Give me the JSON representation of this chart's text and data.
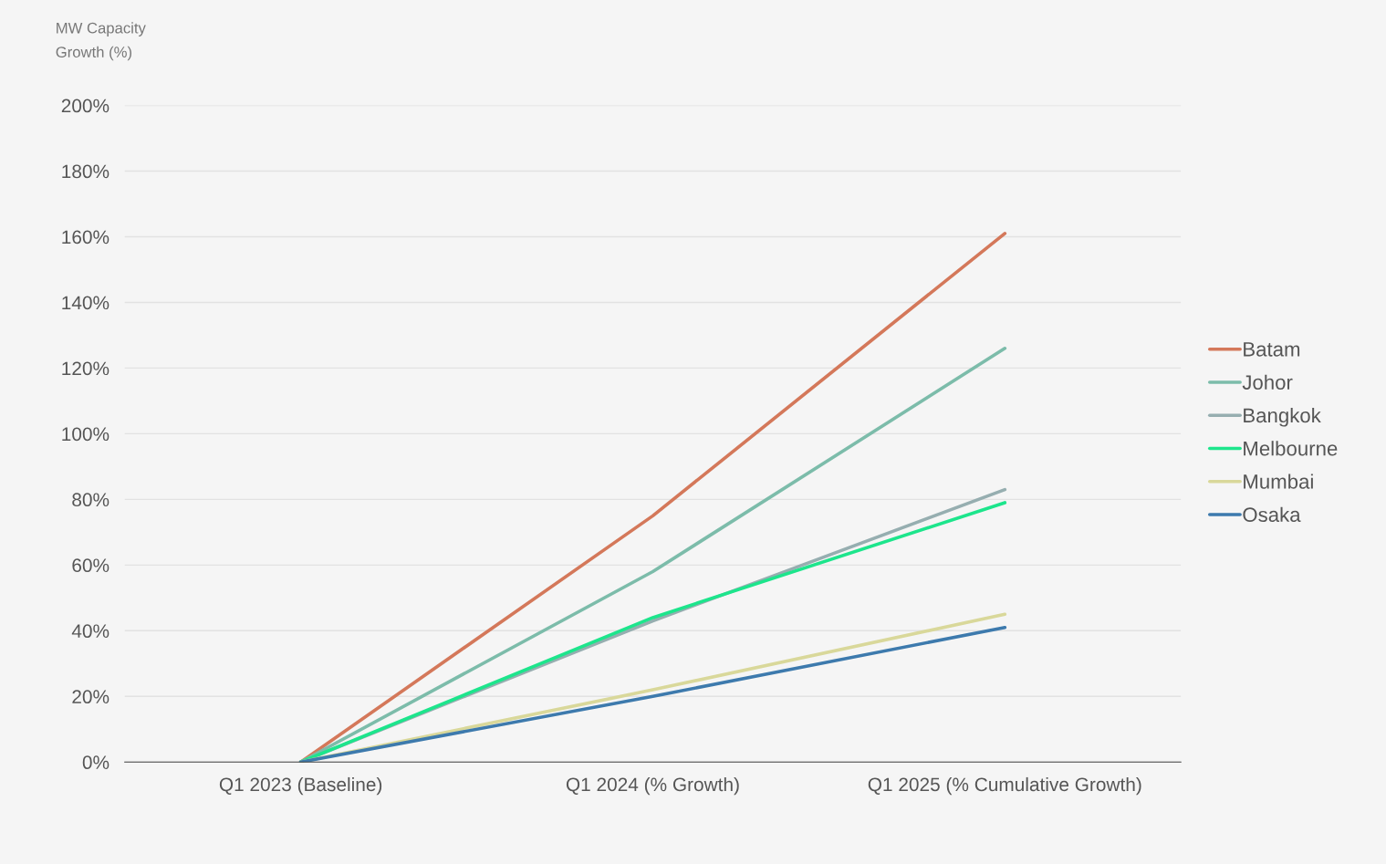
{
  "chart_data": {
    "type": "line",
    "ylabel": "MW Capacity\nGrowth (%)",
    "categories": [
      "Q1 2023 (Baseline)",
      "Q1 2024 (% Growth)",
      "Q1 2025 (% Cumulative Growth)"
    ],
    "series": [
      {
        "name": "Batam",
        "color": "#d4785a",
        "values": [
          0,
          75,
          161
        ]
      },
      {
        "name": "Johor",
        "color": "#7cbcaa",
        "values": [
          0,
          58,
          126
        ]
      },
      {
        "name": "Bangkok",
        "color": "#96aeb0",
        "values": [
          0,
          43,
          83
        ]
      },
      {
        "name": "Melbourne",
        "color": "#1de58c",
        "values": [
          0,
          44,
          79
        ]
      },
      {
        "name": "Mumbai",
        "color": "#d9d89a",
        "values": [
          0,
          22,
          45
        ]
      },
      {
        "name": "Osaka",
        "color": "#3d7aad",
        "values": [
          0,
          20,
          41
        ]
      }
    ],
    "ylim": [
      0,
      200
    ],
    "yticks": [
      {
        "value": 0,
        "label": "0%"
      },
      {
        "value": 20,
        "label": "20%"
      },
      {
        "value": 40,
        "label": "40%"
      },
      {
        "value": 60,
        "label": "60%"
      },
      {
        "value": 80,
        "label": "80%"
      },
      {
        "value": 100,
        "label": "100%"
      },
      {
        "value": 120,
        "label": "120%"
      },
      {
        "value": 140,
        "label": "140%"
      },
      {
        "value": 160,
        "label": "160%"
      },
      {
        "value": 180,
        "label": "180%"
      },
      {
        "value": 200,
        "label": "200%"
      }
    ],
    "grid": "y",
    "legend": "right",
    "marker": "none",
    "line_style": "solid"
  }
}
